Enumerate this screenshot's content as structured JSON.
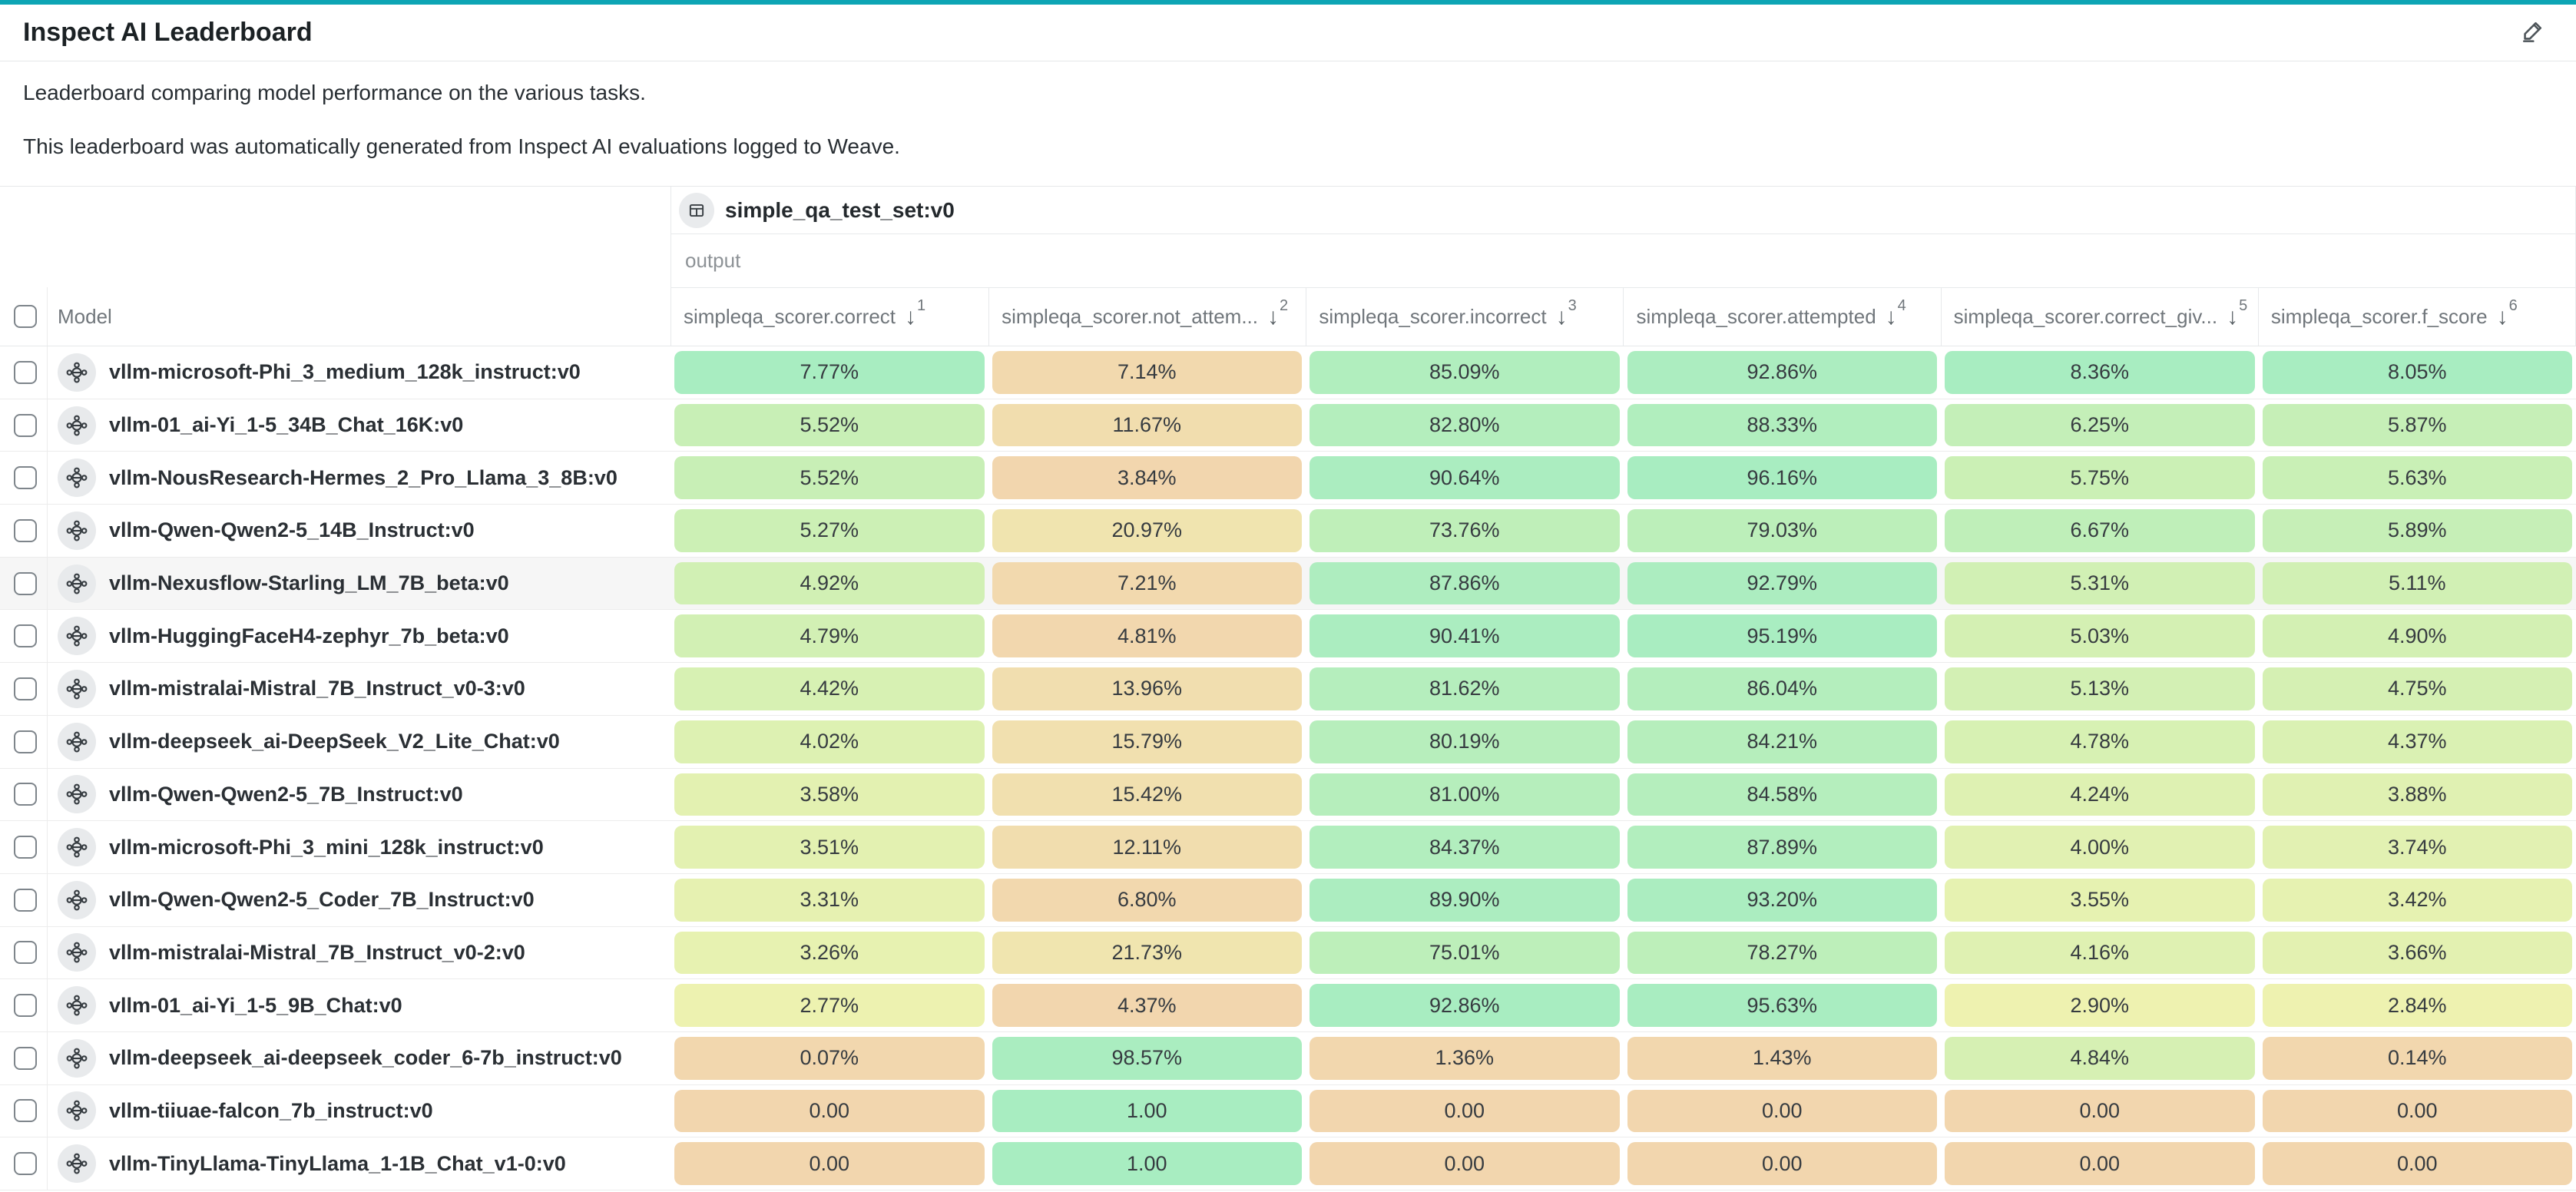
{
  "page": {
    "title": "Inspect AI Leaderboard"
  },
  "description": {
    "line1": "Leaderboard comparing model performance on the various tasks.",
    "line2": "This leaderboard was automatically generated from Inspect AI evaluations logged to Weave."
  },
  "icons": {
    "header_action": "pencil-icon",
    "group_badge": "table-icon",
    "row_badge": "model-icon",
    "sort": "arrow-down-icon"
  },
  "colors": {
    "accent_teal": "#0da5b4",
    "row_highlight": "#f6f6f6",
    "border": "#e7e9eb",
    "scale": [
      {
        "t": 0.0,
        "color": "#f2d6ae"
      },
      {
        "t": 0.35,
        "color": "#eef2b0"
      },
      {
        "t": 0.65,
        "color": "#cff0b4"
      },
      {
        "t": 1.0,
        "color": "#a8edc1"
      }
    ]
  },
  "table": {
    "group": {
      "name": "simple_qa_test_set:v0",
      "subheader": "output"
    },
    "model_col_header": "Model",
    "columns": [
      {
        "label": "simpleqa_scorer.correct",
        "sort_rank": "1"
      },
      {
        "label": "simpleqa_scorer.not_attem...",
        "sort_rank": "2"
      },
      {
        "label": "simpleqa_scorer.incorrect",
        "sort_rank": "3"
      },
      {
        "label": "simpleqa_scorer.attempted",
        "sort_rank": "4"
      },
      {
        "label": "simpleqa_scorer.correct_giv...",
        "sort_rank": "5"
      },
      {
        "label": "simpleqa_scorer.f_score",
        "sort_rank": "6"
      }
    ],
    "rows": [
      {
        "model": "vllm-microsoft-Phi_3_medium_128k_instruct:v0",
        "highlighted": false,
        "cells": [
          {
            "text": "7.77%",
            "value": 7.77
          },
          {
            "text": "7.14%",
            "value": 7.14
          },
          {
            "text": "85.09%",
            "value": 85.09
          },
          {
            "text": "92.86%",
            "value": 92.86
          },
          {
            "text": "8.36%",
            "value": 8.36
          },
          {
            "text": "8.05%",
            "value": 8.05
          }
        ]
      },
      {
        "model": "vllm-01_ai-Yi_1-5_34B_Chat_16K:v0",
        "highlighted": false,
        "cells": [
          {
            "text": "5.52%",
            "value": 5.52
          },
          {
            "text": "11.67%",
            "value": 11.67
          },
          {
            "text": "82.80%",
            "value": 82.8
          },
          {
            "text": "88.33%",
            "value": 88.33
          },
          {
            "text": "6.25%",
            "value": 6.25
          },
          {
            "text": "5.87%",
            "value": 5.87
          }
        ]
      },
      {
        "model": "vllm-NousResearch-Hermes_2_Pro_Llama_3_8B:v0",
        "highlighted": false,
        "cells": [
          {
            "text": "5.52%",
            "value": 5.52
          },
          {
            "text": "3.84%",
            "value": 3.84
          },
          {
            "text": "90.64%",
            "value": 90.64
          },
          {
            "text": "96.16%",
            "value": 96.16
          },
          {
            "text": "5.75%",
            "value": 5.75
          },
          {
            "text": "5.63%",
            "value": 5.63
          }
        ]
      },
      {
        "model": "vllm-Qwen-Qwen2-5_14B_Instruct:v0",
        "highlighted": false,
        "cells": [
          {
            "text": "5.27%",
            "value": 5.27
          },
          {
            "text": "20.97%",
            "value": 20.97
          },
          {
            "text": "73.76%",
            "value": 73.76
          },
          {
            "text": "79.03%",
            "value": 79.03
          },
          {
            "text": "6.67%",
            "value": 6.67
          },
          {
            "text": "5.89%",
            "value": 5.89
          }
        ]
      },
      {
        "model": "vllm-Nexusflow-Starling_LM_7B_beta:v0",
        "highlighted": true,
        "cells": [
          {
            "text": "4.92%",
            "value": 4.92
          },
          {
            "text": "7.21%",
            "value": 7.21
          },
          {
            "text": "87.86%",
            "value": 87.86
          },
          {
            "text": "92.79%",
            "value": 92.79
          },
          {
            "text": "5.31%",
            "value": 5.31
          },
          {
            "text": "5.11%",
            "value": 5.11
          }
        ]
      },
      {
        "model": "vllm-HuggingFaceH4-zephyr_7b_beta:v0",
        "highlighted": false,
        "cells": [
          {
            "text": "4.79%",
            "value": 4.79
          },
          {
            "text": "4.81%",
            "value": 4.81
          },
          {
            "text": "90.41%",
            "value": 90.41
          },
          {
            "text": "95.19%",
            "value": 95.19
          },
          {
            "text": "5.03%",
            "value": 5.03
          },
          {
            "text": "4.90%",
            "value": 4.9
          }
        ]
      },
      {
        "model": "vllm-mistralai-Mistral_7B_Instruct_v0-3:v0",
        "highlighted": false,
        "cells": [
          {
            "text": "4.42%",
            "value": 4.42
          },
          {
            "text": "13.96%",
            "value": 13.96
          },
          {
            "text": "81.62%",
            "value": 81.62
          },
          {
            "text": "86.04%",
            "value": 86.04
          },
          {
            "text": "5.13%",
            "value": 5.13
          },
          {
            "text": "4.75%",
            "value": 4.75
          }
        ]
      },
      {
        "model": "vllm-deepseek_ai-DeepSeek_V2_Lite_Chat:v0",
        "highlighted": false,
        "cells": [
          {
            "text": "4.02%",
            "value": 4.02
          },
          {
            "text": "15.79%",
            "value": 15.79
          },
          {
            "text": "80.19%",
            "value": 80.19
          },
          {
            "text": "84.21%",
            "value": 84.21
          },
          {
            "text": "4.78%",
            "value": 4.78
          },
          {
            "text": "4.37%",
            "value": 4.37
          }
        ]
      },
      {
        "model": "vllm-Qwen-Qwen2-5_7B_Instruct:v0",
        "highlighted": false,
        "cells": [
          {
            "text": "3.58%",
            "value": 3.58
          },
          {
            "text": "15.42%",
            "value": 15.42
          },
          {
            "text": "81.00%",
            "value": 81.0
          },
          {
            "text": "84.58%",
            "value": 84.58
          },
          {
            "text": "4.24%",
            "value": 4.24
          },
          {
            "text": "3.88%",
            "value": 3.88
          }
        ]
      },
      {
        "model": "vllm-microsoft-Phi_3_mini_128k_instruct:v0",
        "highlighted": false,
        "cells": [
          {
            "text": "3.51%",
            "value": 3.51
          },
          {
            "text": "12.11%",
            "value": 12.11
          },
          {
            "text": "84.37%",
            "value": 84.37
          },
          {
            "text": "87.89%",
            "value": 87.89
          },
          {
            "text": "4.00%",
            "value": 4.0
          },
          {
            "text": "3.74%",
            "value": 3.74
          }
        ]
      },
      {
        "model": "vllm-Qwen-Qwen2-5_Coder_7B_Instruct:v0",
        "highlighted": false,
        "cells": [
          {
            "text": "3.31%",
            "value": 3.31
          },
          {
            "text": "6.80%",
            "value": 6.8
          },
          {
            "text": "89.90%",
            "value": 89.9
          },
          {
            "text": "93.20%",
            "value": 93.2
          },
          {
            "text": "3.55%",
            "value": 3.55
          },
          {
            "text": "3.42%",
            "value": 3.42
          }
        ]
      },
      {
        "model": "vllm-mistralai-Mistral_7B_Instruct_v0-2:v0",
        "highlighted": false,
        "cells": [
          {
            "text": "3.26%",
            "value": 3.26
          },
          {
            "text": "21.73%",
            "value": 21.73
          },
          {
            "text": "75.01%",
            "value": 75.01
          },
          {
            "text": "78.27%",
            "value": 78.27
          },
          {
            "text": "4.16%",
            "value": 4.16
          },
          {
            "text": "3.66%",
            "value": 3.66
          }
        ]
      },
      {
        "model": "vllm-01_ai-Yi_1-5_9B_Chat:v0",
        "highlighted": false,
        "cells": [
          {
            "text": "2.77%",
            "value": 2.77
          },
          {
            "text": "4.37%",
            "value": 4.37
          },
          {
            "text": "92.86%",
            "value": 92.86
          },
          {
            "text": "95.63%",
            "value": 95.63
          },
          {
            "text": "2.90%",
            "value": 2.9
          },
          {
            "text": "2.84%",
            "value": 2.84
          }
        ]
      },
      {
        "model": "vllm-deepseek_ai-deepseek_coder_6-7b_instruct:v0",
        "highlighted": false,
        "cells": [
          {
            "text": "0.07%",
            "value": 0.07
          },
          {
            "text": "98.57%",
            "value": 98.57
          },
          {
            "text": "1.36%",
            "value": 1.36
          },
          {
            "text": "1.43%",
            "value": 1.43
          },
          {
            "text": "4.84%",
            "value": 4.84
          },
          {
            "text": "0.14%",
            "value": 0.14
          }
        ]
      },
      {
        "model": "vllm-tiiuae-falcon_7b_instruct:v0",
        "highlighted": false,
        "cells": [
          {
            "text": "0.00",
            "value": 0
          },
          {
            "text": "1.00",
            "value": 100
          },
          {
            "text": "0.00",
            "value": 0
          },
          {
            "text": "0.00",
            "value": 0
          },
          {
            "text": "0.00",
            "value": 0
          },
          {
            "text": "0.00",
            "value": 0
          }
        ]
      },
      {
        "model": "vllm-TinyLlama-TinyLlama_1-1B_Chat_v1-0:v0",
        "highlighted": false,
        "cells": [
          {
            "text": "0.00",
            "value": 0
          },
          {
            "text": "1.00",
            "value": 100
          },
          {
            "text": "0.00",
            "value": 0
          },
          {
            "text": "0.00",
            "value": 0
          },
          {
            "text": "0.00",
            "value": 0
          },
          {
            "text": "0.00",
            "value": 0
          }
        ]
      }
    ]
  }
}
